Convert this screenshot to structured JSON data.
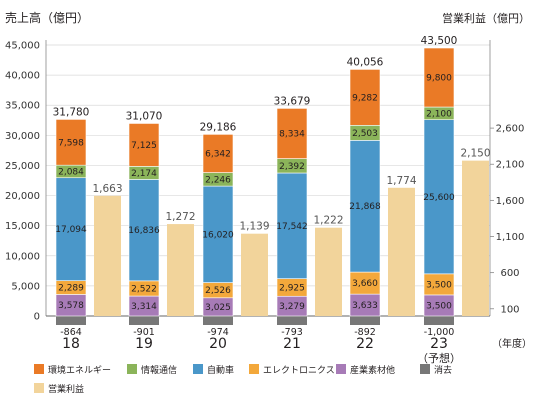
{
  "chart_data": {
    "type": "bar",
    "left_axis_title": "売上高（億円）",
    "right_axis_title": "営業利益（億円）",
    "x_unit_label": "（年度）",
    "categories": [
      "18",
      "19",
      "20",
      "21",
      "22",
      "23"
    ],
    "category_notes": [
      "",
      "",
      "",
      "",
      "",
      "（予想）"
    ],
    "left_ticks": [
      "0",
      "5,000",
      "10,000",
      "15,000",
      "20,000",
      "25,000",
      "30,000",
      "35,000",
      "40,000",
      "45,000"
    ],
    "right_ticks": [
      "100",
      "600",
      "1,100",
      "1,600",
      "2,100",
      "2,600"
    ],
    "ylim_left": [
      0,
      45000
    ],
    "ylim_right_note": "right axis 100–2,600 aligned with left 0–~30,000 scale",
    "stacked_series": [
      {
        "name": "産業素材他",
        "color": "#a77bb7",
        "values": [
          3578,
          3314,
          3025,
          3279,
          3633,
          3500
        ],
        "labels": [
          "3,578",
          "3,314",
          "3,025",
          "3,279",
          "3,633",
          "3,500"
        ]
      },
      {
        "name": "エレクトロニクス",
        "color": "#f3a83b",
        "values": [
          2289,
          2522,
          2526,
          2925,
          3660,
          3500
        ],
        "labels": [
          "2,289",
          "2,522",
          "2,526",
          "2,925",
          "3,660",
          "3,500"
        ]
      },
      {
        "name": "自動車",
        "color": "#4a97c9",
        "values": [
          17094,
          16836,
          16020,
          17542,
          21868,
          25600
        ],
        "labels": [
          "17,094",
          "16,836",
          "16,020",
          "17,542",
          "21,868",
          "25,600"
        ]
      },
      {
        "name": "情報通信",
        "color": "#8bb45a",
        "values": [
          2084,
          2174,
          2246,
          2392,
          2503,
          2100
        ],
        "labels": [
          "2,084",
          "2,174",
          "2,246",
          "2,392",
          "2,503",
          "2,100"
        ]
      },
      {
        "name": "環境エネルギー",
        "color": "#ea7a26",
        "values": [
          7598,
          7125,
          6342,
          8334,
          9282,
          9800
        ],
        "labels": [
          "7,598",
          "7,125",
          "6,342",
          "8,334",
          "9,282",
          "9,800"
        ]
      }
    ],
    "elimination_series": {
      "name": "消去",
      "color": "#777777",
      "values": [
        -864,
        -901,
        -974,
        -793,
        -892,
        -1000
      ],
      "labels": [
        "-864",
        "-901",
        "-974",
        "-793",
        "-892",
        "-1,000"
      ]
    },
    "totals": {
      "values": [
        31780,
        31070,
        29186,
        33679,
        40056,
        43500
      ],
      "labels": [
        "31,780",
        "31,070",
        "29,186",
        "33,679",
        "40,056",
        "43,500"
      ]
    },
    "operating_income": {
      "name": "営業利益",
      "color": "#f2d49b",
      "values": [
        1663,
        1272,
        1139,
        1222,
        1774,
        2150
      ],
      "labels": [
        "1,663",
        "1,272",
        "1,139",
        "1,222",
        "1,774",
        "2,150"
      ],
      "axis": "right"
    },
    "legend_order": [
      "環境エネルギー",
      "情報通信",
      "自動車",
      "エレクトロニクス",
      "産業素材他",
      "消去",
      "営業利益"
    ],
    "legend_position": "bottom"
  }
}
